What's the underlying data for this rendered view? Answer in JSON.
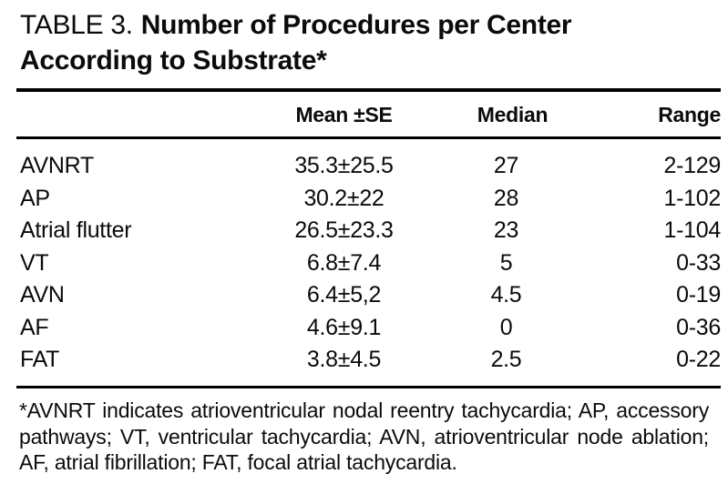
{
  "title": {
    "label": "TABLE 3.",
    "line1": "Number of Procedures per Center",
    "line2": "According to Substrate*"
  },
  "table": {
    "header": {
      "substrate": "",
      "mean_se": "Mean ±SE",
      "median": "Median",
      "range": "Range"
    },
    "rows": [
      {
        "substrate": "AVNRT",
        "mean_se": "35.3±25.5",
        "median": "27",
        "range": "2-129"
      },
      {
        "substrate": "AP",
        "mean_se": "30.2±22",
        "median": "28",
        "range": "1-102"
      },
      {
        "substrate": "Atrial flutter",
        "mean_se": "26.5±23.3",
        "median": "23",
        "range": "1-104"
      },
      {
        "substrate": "VT",
        "mean_se": "6.8±7.4",
        "median": "5",
        "range": "0-33"
      },
      {
        "substrate": "AVN",
        "mean_se": "6.4±5,2",
        "median": "4.5",
        "range": "0-19"
      },
      {
        "substrate": "AF",
        "mean_se": "4.6±9.1",
        "median": "0",
        "range": "0-36"
      },
      {
        "substrate": "FAT",
        "mean_se": "3.8±4.5",
        "median": "2.5",
        "range": "0-22"
      }
    ]
  },
  "footnote": {
    "text": "*AVNRT indicates atrioventricular nodal reentry tachycardia; AP, accessory pathways; VT, ventricular tachycardia; AVN, atrioventricular node ablation; AF, atrial fibrillation; FAT, focal atrial tachycardia."
  },
  "colors": {
    "background": "#ffffff",
    "text": "#0b0b0b",
    "rule": "#000000"
  }
}
